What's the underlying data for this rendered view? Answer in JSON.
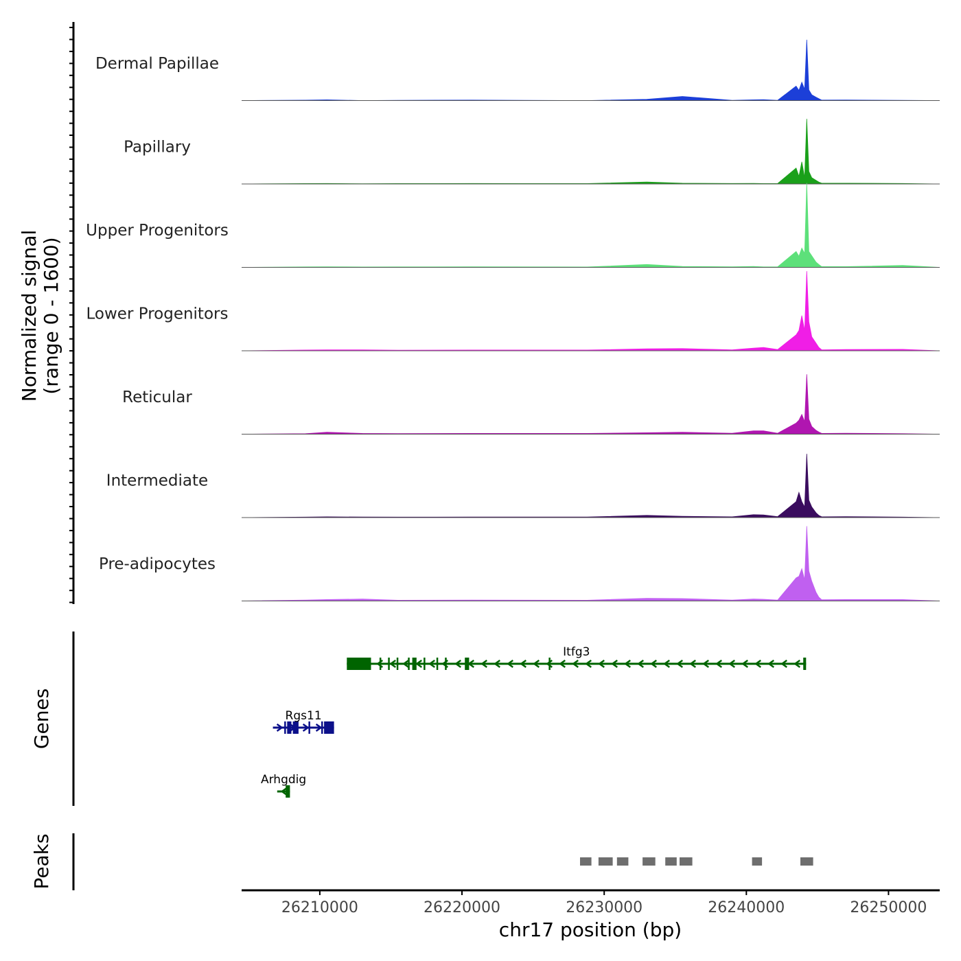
{
  "chart_data": {
    "type": "area",
    "title": "",
    "chromosome": "chr17",
    "xlabel": "chr17 position (bp)",
    "xlim": [
      26204500,
      26253600
    ],
    "xticks": [
      26210000,
      26220000,
      26230000,
      26240000,
      26250000
    ],
    "xtick_labels": [
      "26210000",
      "26220000",
      "26230000",
      "26240000",
      "26250000"
    ],
    "coverage": {
      "ylabel_line1": "Normalized signal",
      "ylabel_line2": "(range 0 - 1600)",
      "ylim": [
        0,
        1600
      ],
      "x": [
        26204500,
        26209000,
        26210500,
        26213000,
        26215500,
        26220700,
        26228800,
        26233000,
        26235500,
        26239000,
        26240500,
        26241200,
        26242200,
        26243500,
        26243700,
        26243900,
        26244100,
        26244250,
        26244400,
        26244600,
        26244900,
        26245100,
        26245300,
        26247000,
        26251000,
        26253600
      ],
      "series": [
        {
          "name": "Dermal Papillae",
          "color": "#1c3fd8",
          "values": [
            0,
            8,
            15,
            0,
            5,
            10,
            0,
            25,
            85,
            5,
            15,
            20,
            5,
            300,
            210,
            380,
            235,
            1260,
            220,
            120,
            70,
            40,
            10,
            12,
            5,
            0
          ]
        },
        {
          "name": "Papillary",
          "color": "#1aa01a",
          "values": [
            0,
            8,
            10,
            5,
            8,
            10,
            8,
            40,
            15,
            10,
            12,
            8,
            10,
            330,
            160,
            460,
            130,
            1350,
            260,
            130,
            75,
            40,
            15,
            15,
            10,
            0
          ]
        },
        {
          "name": "Upper Progenitors",
          "color": "#5de07a",
          "values": [
            0,
            10,
            12,
            8,
            10,
            12,
            8,
            60,
            20,
            12,
            18,
            10,
            12,
            330,
            230,
            400,
            290,
            1750,
            330,
            240,
            110,
            60,
            15,
            15,
            40,
            0
          ]
        },
        {
          "name": "Lower Progenitors",
          "color": "#f01ee6",
          "values": [
            0,
            15,
            20,
            20,
            12,
            15,
            15,
            40,
            45,
            20,
            55,
            70,
            25,
            330,
            420,
            730,
            420,
            1650,
            600,
            290,
            160,
            70,
            20,
            25,
            30,
            0
          ]
        },
        {
          "name": "Reticular",
          "color": "#b016b0",
          "values": [
            0,
            10,
            40,
            15,
            12,
            15,
            15,
            30,
            40,
            20,
            70,
            70,
            20,
            230,
            290,
            410,
            260,
            1240,
            310,
            160,
            80,
            45,
            15,
            20,
            10,
            0
          ]
        },
        {
          "name": "Intermediate",
          "color": "#3a0c5e",
          "values": [
            0,
            10,
            15,
            12,
            10,
            12,
            12,
            45,
            25,
            15,
            60,
            55,
            20,
            330,
            520,
            330,
            220,
            1320,
            360,
            220,
            100,
            45,
            15,
            20,
            10,
            0
          ]
        },
        {
          "name": "Pre-adipocytes",
          "color": "#c060f0",
          "values": [
            0,
            20,
            30,
            40,
            15,
            20,
            15,
            55,
            50,
            20,
            40,
            35,
            20,
            480,
            510,
            670,
            440,
            1550,
            620,
            410,
            180,
            80,
            25,
            30,
            30,
            0
          ]
        }
      ]
    },
    "genes": {
      "label": "Genes",
      "items": [
        {
          "name": "Itfg3",
          "strand": "-",
          "color": "#006400",
          "start": 26211900,
          "end": 26244200,
          "exons": [
            [
              26211900,
              26213600
            ],
            [
              26214200,
              26214300
            ],
            [
              26214800,
              26214900
            ],
            [
              26215400,
              26215500
            ],
            [
              26216200,
              26216300
            ],
            [
              26216500,
              26216800
            ],
            [
              26217300,
              26217400
            ],
            [
              26218200,
              26218300
            ],
            [
              26218800,
              26218900
            ],
            [
              26220200,
              26220500
            ],
            [
              26226100,
              26226200
            ],
            [
              26244000,
              26244200
            ]
          ]
        },
        {
          "name": "Rgs11",
          "strand": "+",
          "color": "#0c108a",
          "start": 26206700,
          "end": 26211000,
          "exons": [
            [
              26207500,
              26207600
            ],
            [
              26207700,
              26208000
            ],
            [
              26208100,
              26208500
            ],
            [
              26209200,
              26209300
            ],
            [
              26210100,
              26210200
            ],
            [
              26210300,
              26211000
            ]
          ]
        },
        {
          "name": "Arhgdig",
          "strand": "-",
          "color": "#006400",
          "start": 26207000,
          "end": 26207900,
          "exons": [
            [
              26207600,
              26207900
            ]
          ]
        }
      ]
    },
    "peaks": {
      "label": "Peaks",
      "color": "#6e6e6e",
      "regions": [
        [
          26228300,
          26229100
        ],
        [
          26229600,
          26230600
        ],
        [
          26230900,
          26231700
        ],
        [
          26232700,
          26233600
        ],
        [
          26234300,
          26235100
        ],
        [
          26235300,
          26236200
        ],
        [
          26240400,
          26241100
        ],
        [
          26243800,
          26244700
        ]
      ]
    }
  }
}
